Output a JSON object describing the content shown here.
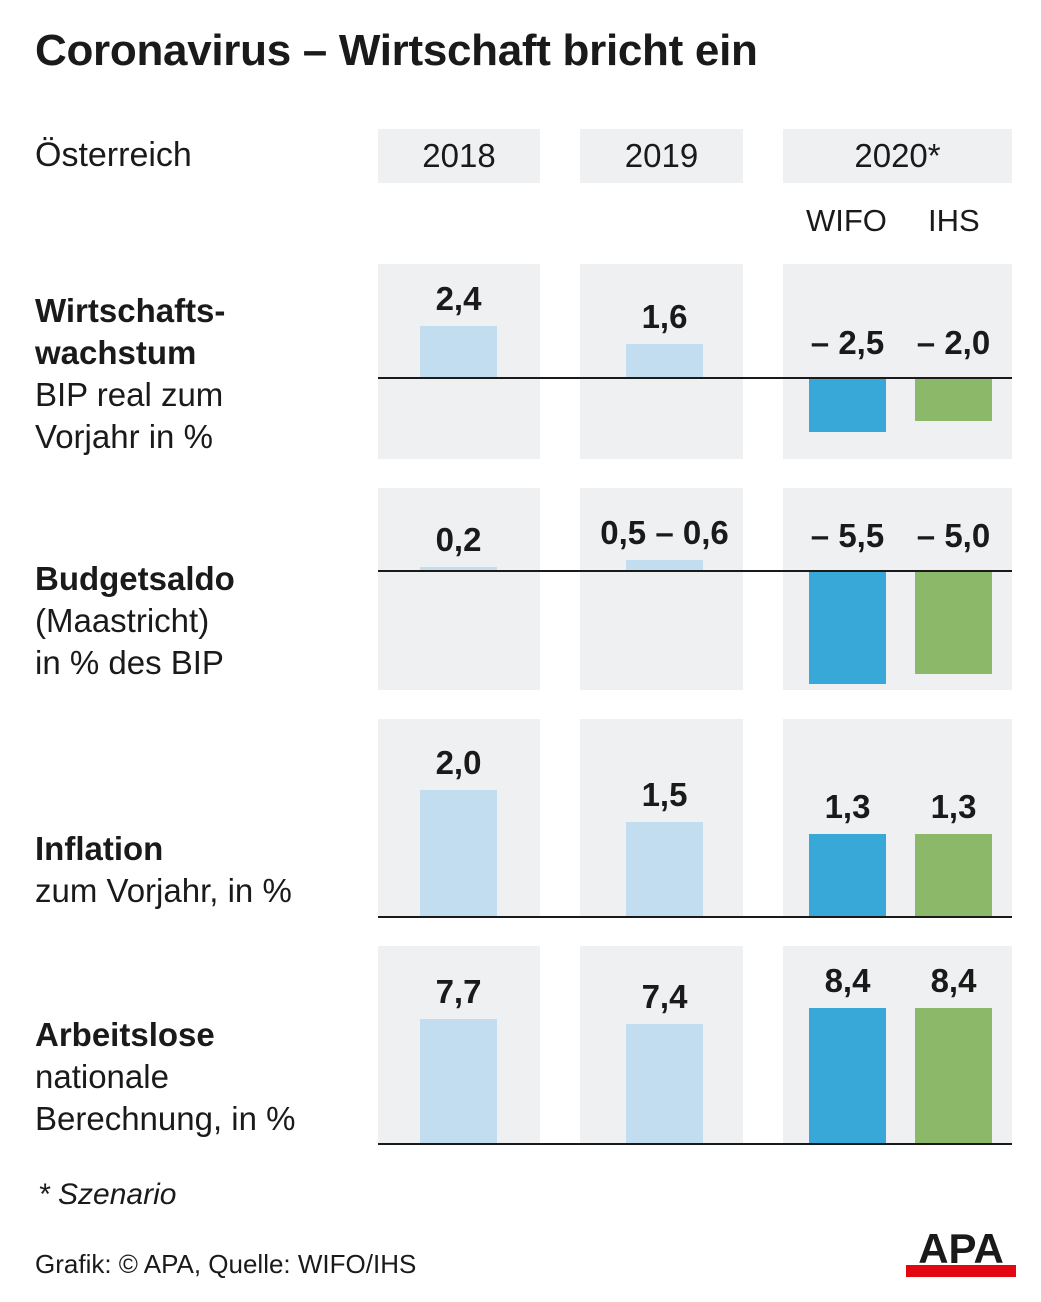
{
  "title": "Coronavirus – Wirtschaft bricht ein",
  "country": "Österreich",
  "columns": [
    "2018",
    "2019",
    "2020*"
  ],
  "sub_columns": [
    "WIFO",
    "IHS"
  ],
  "footnote": "* Szenario",
  "source": "Grafik: © APA, Quelle: WIFO/IHS",
  "logo_text": "APA",
  "colors": {
    "past": "#c2ddf0",
    "wifo": "#38a8d8",
    "ihs": "#8cb86a",
    "panel": "#eff0f1",
    "logo_red": "#e30613"
  },
  "chart_data": [
    {
      "type": "bar",
      "label_bold": "Wirtschafts-\nwachstum",
      "label_normal": "BIP real zum\nVorjahr in %",
      "bars": [
        {
          "year": "2018",
          "value": 2.4,
          "label": "2,4"
        },
        {
          "year": "2019",
          "value": 1.6,
          "label": "1,6"
        },
        {
          "year": "2020*",
          "series": "WIFO",
          "value": -2.5,
          "label": "– 2,5"
        },
        {
          "year": "2020*",
          "series": "IHS",
          "value": -2.0,
          "label": "– 2,0"
        }
      ]
    },
    {
      "type": "bar",
      "label_bold": "Budgetsaldo",
      "label_normal": "(Maastricht)\nin % des BIP",
      "bars": [
        {
          "year": "2018",
          "value": 0.2,
          "label": "0,2"
        },
        {
          "year": "2019",
          "value": 0.55,
          "label": "0,5 – 0,6"
        },
        {
          "year": "2020*",
          "series": "WIFO",
          "value": -5.5,
          "label": "– 5,5"
        },
        {
          "year": "2020*",
          "series": "IHS",
          "value": -5.0,
          "label": "– 5,0"
        }
      ]
    },
    {
      "type": "bar",
      "label_bold": "Inflation",
      "label_normal": "zum Vorjahr, in %",
      "bars": [
        {
          "year": "2018",
          "value": 2.0,
          "label": "2,0"
        },
        {
          "year": "2019",
          "value": 1.5,
          "label": "1,5"
        },
        {
          "year": "2020*",
          "series": "WIFO",
          "value": 1.3,
          "label": "1,3"
        },
        {
          "year": "2020*",
          "series": "IHS",
          "value": 1.3,
          "label": "1,3"
        }
      ]
    },
    {
      "type": "bar",
      "label_bold": "Arbeitslose",
      "label_normal": "nationale\nBerechnung, in %",
      "bars": [
        {
          "year": "2018",
          "value": 7.7,
          "label": "7,7"
        },
        {
          "year": "2019",
          "value": 7.4,
          "label": "7,4"
        },
        {
          "year": "2020*",
          "series": "WIFO",
          "value": 8.4,
          "label": "8,4"
        },
        {
          "year": "2020*",
          "series": "IHS",
          "value": 8.4,
          "label": "8,4"
        }
      ]
    }
  ]
}
